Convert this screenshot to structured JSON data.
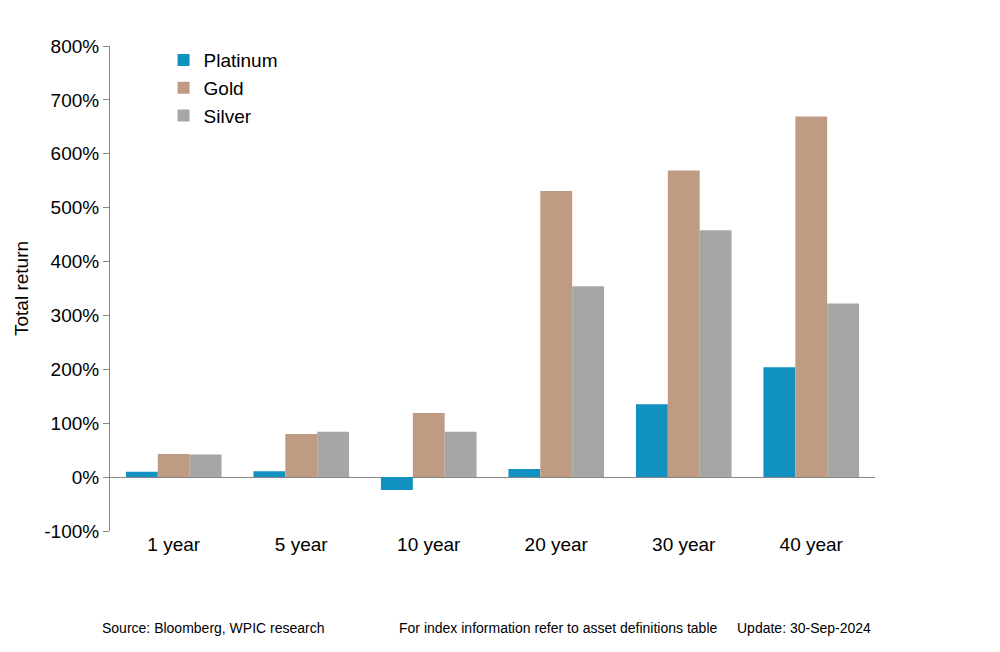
{
  "chart_data": {
    "type": "bar",
    "ylabel": "Total return",
    "categories": [
      "1 year",
      "5 year",
      "10 year",
      "20 year",
      "30 year",
      "40 year"
    ],
    "series": [
      {
        "name": "Platinum",
        "color": "#1191c0",
        "values": [
          10,
          11,
          -24,
          15,
          135,
          204
        ]
      },
      {
        "name": "Gold",
        "color": "#bf9b84",
        "values": [
          43,
          80,
          119,
          531,
          569,
          669
        ]
      },
      {
        "name": "Silver",
        "color": "#a6a6a6",
        "values": [
          42,
          84,
          84,
          354,
          458,
          322
        ]
      }
    ],
    "ylim": [
      -100,
      800
    ],
    "yticks": [
      {
        "value": -100,
        "label": "-100%"
      },
      {
        "value": 0,
        "label": "0%"
      },
      {
        "value": 100,
        "label": "100%"
      },
      {
        "value": 200,
        "label": "200%"
      },
      {
        "value": 300,
        "label": "300%"
      },
      {
        "value": 400,
        "label": "400%"
      },
      {
        "value": 500,
        "label": "500%"
      },
      {
        "value": 600,
        "label": "600%"
      },
      {
        "value": 700,
        "label": "700%"
      },
      {
        "value": 800,
        "label": "800%"
      }
    ],
    "grid": false,
    "legend": "top-left",
    "annotations": [
      "Source: Bloomberg, WPIC research",
      "For index information refer to asset definitions table",
      "Update: 30-Sep-2024"
    ]
  }
}
